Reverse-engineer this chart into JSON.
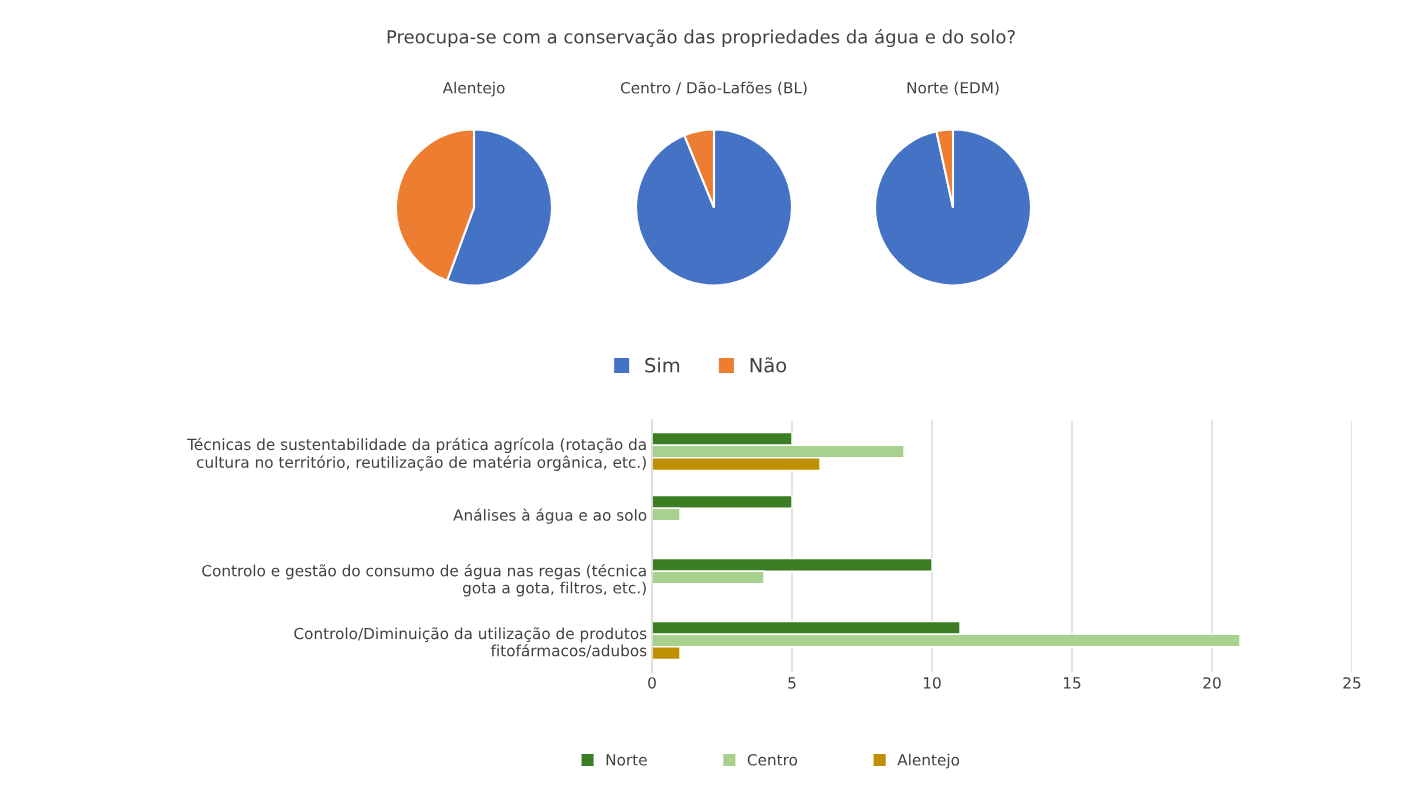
{
  "chart_data": [
    {
      "type": "pie",
      "title": "Preocupa-se com a conservação das propriedades da água e do solo?",
      "categories": [
        "Sim",
        "Não"
      ],
      "colors": [
        "#4472c4",
        "#ed7d31"
      ],
      "legend": "bottom",
      "series": [
        {
          "name": "Alentejo",
          "values": [
            55.6,
            44.4
          ]
        },
        {
          "name": "Centro / Dão-Lafões (BL)",
          "values": [
            93.8,
            6.2
          ]
        },
        {
          "name": "Norte (EDM)",
          "values": [
            96.6,
            3.4
          ]
        }
      ]
    },
    {
      "type": "bar",
      "orientation": "horizontal",
      "categories": [
        "Técnicas de sustentabilidade da prática agrícola (rotação da\ncultura no território, reutilização de matéria orgânica, etc.)",
        "Análises à água e ao solo",
        "Controlo e gestão do consumo de água nas regas (técnica\ngota a gota, filtros, etc.)",
        "Controlo/Diminuição da utilização de produtos\nfitofármacos/adubos"
      ],
      "series": [
        {
          "name": "Norte",
          "color": "#3a7d22",
          "values": [
            5,
            5,
            10,
            11
          ]
        },
        {
          "name": "Centro",
          "color": "#a9d18e",
          "values": [
            9,
            1,
            4,
            21
          ]
        },
        {
          "name": "Alentejo",
          "color": "#bf9000",
          "values": [
            6,
            null,
            null,
            1
          ]
        }
      ],
      "xlim": [
        0,
        25
      ],
      "xticks": [
        0,
        5,
        10,
        15,
        20,
        25
      ],
      "grid": "x",
      "legend": "bottom"
    }
  ]
}
